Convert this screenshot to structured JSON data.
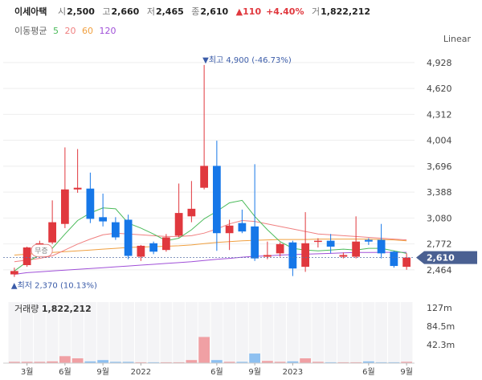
{
  "header": {
    "stock_name": "이세아택",
    "open_label": "시",
    "open": "2,500",
    "high_label": "고",
    "high": "2,660",
    "low_label": "저",
    "low": "2,465",
    "close_label": "종",
    "close": "2,610",
    "change": "▲110",
    "change_pct": "+4.40%",
    "volume_label": "거",
    "volume": "1,822,212"
  },
  "ma_legend": {
    "label": "이동평균",
    "items": [
      "5",
      "20",
      "60",
      "120"
    ]
  },
  "scale_label": "Linear",
  "annotations": {
    "high": "▼최고 4,900 (-46.73%)",
    "low": "▲최저 2,370 (10.13%)",
    "marker": "무증"
  },
  "volume_panel": {
    "label": "거래량",
    "value": "1,822,212",
    "ticks": [
      "127m",
      "84.5m",
      "42.3m"
    ]
  },
  "colors": {
    "up": "#e0383e",
    "down": "#1677e8",
    "ma5": "#4cbb5b",
    "ma20": "#f08080",
    "ma60": "#f0a040",
    "ma120": "#a050d8"
  },
  "chart_data": {
    "type": "candlestick",
    "y_ticks": [
      4928,
      4620,
      4312,
      4004,
      3696,
      3388,
      3080,
      2772,
      2464
    ],
    "ylim": [
      2310,
      5080
    ],
    "current_price": 2610,
    "current_price_label": "2,610",
    "x_ticks": [
      "3월",
      "6월",
      "9월",
      "2022",
      "6월",
      "9월",
      "2023",
      "6월",
      "9월"
    ],
    "candles": [
      {
        "o": 2410,
        "h": 2490,
        "l": 2380,
        "c": 2450
      },
      {
        "o": 2520,
        "h": 2740,
        "l": 2500,
        "c": 2730
      },
      {
        "o": 2760,
        "h": 2810,
        "l": 2720,
        "c": 2780
      },
      {
        "o": 2790,
        "h": 3290,
        "l": 2770,
        "c": 3030
      },
      {
        "o": 3010,
        "h": 3920,
        "l": 2960,
        "c": 3420
      },
      {
        "o": 3420,
        "h": 3900,
        "l": 3380,
        "c": 3440
      },
      {
        "o": 3430,
        "h": 3620,
        "l": 3020,
        "c": 3070
      },
      {
        "o": 3090,
        "h": 3370,
        "l": 2980,
        "c": 3040
      },
      {
        "o": 3030,
        "h": 3090,
        "l": 2820,
        "c": 2850
      },
      {
        "o": 3060,
        "h": 3120,
        "l": 2590,
        "c": 2630
      },
      {
        "o": 2620,
        "h": 2760,
        "l": 2570,
        "c": 2750
      },
      {
        "o": 2780,
        "h": 2800,
        "l": 2650,
        "c": 2680
      },
      {
        "o": 2700,
        "h": 2890,
        "l": 2680,
        "c": 2850
      },
      {
        "o": 2870,
        "h": 3490,
        "l": 2850,
        "c": 3140
      },
      {
        "o": 3100,
        "h": 3520,
        "l": 3030,
        "c": 3190
      },
      {
        "o": 3440,
        "h": 4900,
        "l": 3420,
        "c": 3700
      },
      {
        "o": 3700,
        "h": 4000,
        "l": 2690,
        "c": 2900
      },
      {
        "o": 2900,
        "h": 3060,
        "l": 2700,
        "c": 2990
      },
      {
        "o": 3020,
        "h": 3180,
        "l": 2900,
        "c": 2920
      },
      {
        "o": 2980,
        "h": 3720,
        "l": 2570,
        "c": 2600
      },
      {
        "o": 2620,
        "h": 2800,
        "l": 2590,
        "c": 2640
      },
      {
        "o": 2660,
        "h": 2790,
        "l": 2620,
        "c": 2770
      },
      {
        "o": 2790,
        "h": 2810,
        "l": 2390,
        "c": 2480
      },
      {
        "o": 2500,
        "h": 3150,
        "l": 2440,
        "c": 2780
      },
      {
        "o": 2800,
        "h": 2840,
        "l": 2730,
        "c": 2810
      },
      {
        "o": 2810,
        "h": 2890,
        "l": 2660,
        "c": 2740
      },
      {
        "o": 2620,
        "h": 2670,
        "l": 2600,
        "c": 2640
      },
      {
        "o": 2620,
        "h": 3100,
        "l": 2600,
        "c": 2800
      },
      {
        "o": 2820,
        "h": 2840,
        "l": 2760,
        "c": 2800
      },
      {
        "o": 2820,
        "h": 3010,
        "l": 2600,
        "c": 2660
      },
      {
        "o": 2680,
        "h": 2690,
        "l": 2490,
        "c": 2510
      },
      {
        "o": 2500,
        "h": 2660,
        "l": 2465,
        "c": 2610
      }
    ],
    "ma5": [
      2450,
      2560,
      2640,
      2720,
      2890,
      3050,
      3140,
      3200,
      3190,
      3020,
      2960,
      2890,
      2810,
      2840,
      2940,
      3070,
      3160,
      3260,
      3290,
      3100,
      2940,
      2800,
      2720,
      2700,
      2690,
      2700,
      2710,
      2700,
      2720,
      2720,
      2690,
      2660
    ],
    "ma20": [
      2560,
      2580,
      2600,
      2630,
      2700,
      2770,
      2830,
      2880,
      2900,
      2890,
      2880,
      2870,
      2860,
      2860,
      2870,
      2900,
      2950,
      3010,
      3050,
      3040,
      3010,
      2980,
      2950,
      2920,
      2890,
      2880,
      2870,
      2860,
      2850,
      2840,
      2830,
      2820
    ],
    "ma60": [
      2640,
      2650,
      2660,
      2670,
      2680,
      2690,
      2700,
      2710,
      2720,
      2730,
      2735,
      2740,
      2745,
      2750,
      2760,
      2775,
      2790,
      2800,
      2810,
      2815,
      2820,
      2825,
      2825,
      2825,
      2830,
      2830,
      2830,
      2830,
      2830,
      2825,
      2820,
      2810
    ],
    "ma120": [
      2410,
      2430,
      2440,
      2450,
      2460,
      2470,
      2480,
      2490,
      2500,
      2510,
      2520,
      2530,
      2540,
      2550,
      2560,
      2575,
      2590,
      2600,
      2615,
      2625,
      2630,
      2640,
      2645,
      2650,
      2655,
      2660,
      2665,
      2670,
      2670,
      2672,
      2672,
      2672
    ],
    "volume": [
      3,
      3,
      3,
      4,
      16,
      11,
      4,
      7,
      3,
      3,
      2,
      2,
      2,
      2,
      7,
      60,
      7,
      3,
      3,
      22,
      5,
      3,
      4,
      11,
      3,
      2,
      2,
      2,
      4,
      2,
      2,
      3
    ],
    "volume_up": [
      true,
      true,
      true,
      true,
      true,
      true,
      false,
      false,
      false,
      false,
      true,
      false,
      true,
      true,
      true,
      true,
      false,
      true,
      false,
      false,
      true,
      true,
      false,
      true,
      true,
      false,
      true,
      true,
      false,
      false,
      false,
      true
    ],
    "volume_ylim": [
      0,
      140
    ]
  }
}
